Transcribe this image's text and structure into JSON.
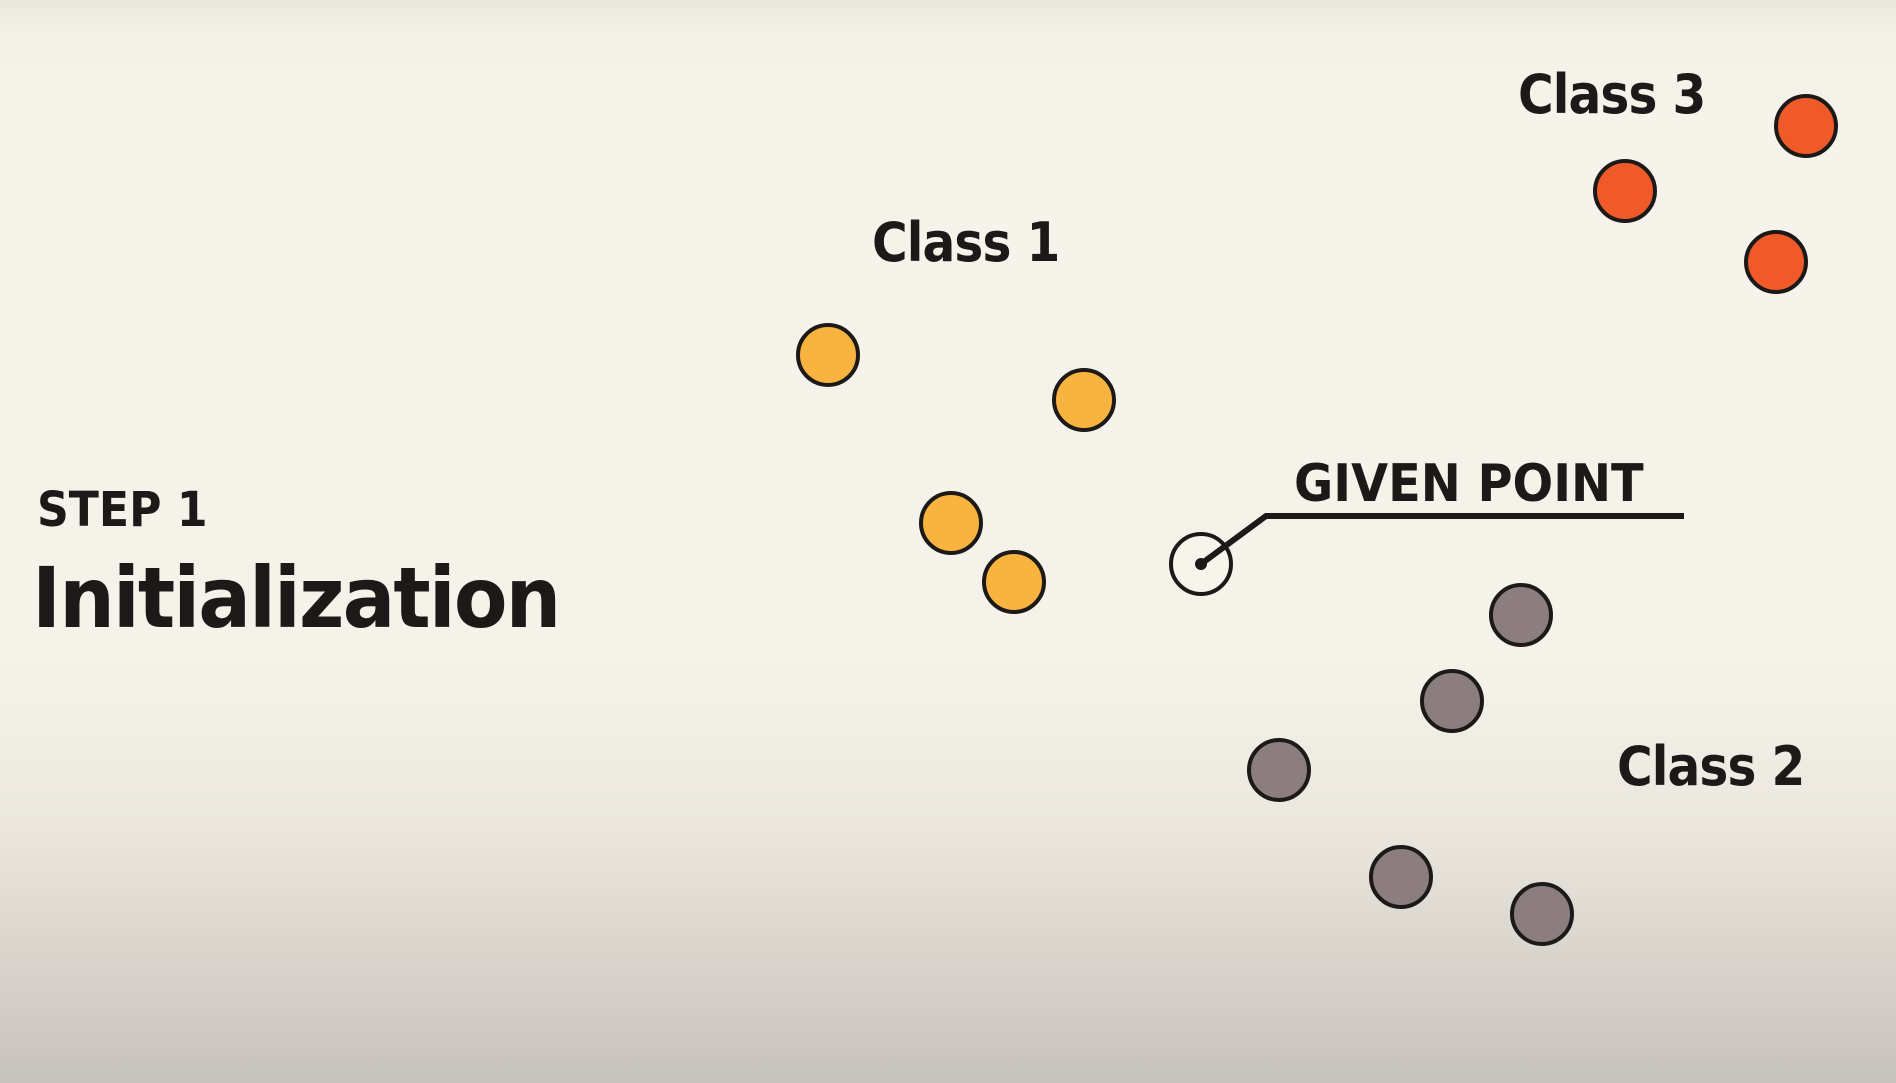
{
  "step": {
    "label": "STEP 1",
    "title": "Initialization"
  },
  "given_point": {
    "label": "GIVEN POINT"
  },
  "classes": [
    {
      "label": "Class 1",
      "color": "#f9b43f",
      "point_count": 4
    },
    {
      "label": "Class 2",
      "color": "#8c7d7f",
      "point_count": 5
    },
    {
      "label": "Class 3",
      "color": "#f05a28",
      "point_count": 3
    }
  ],
  "colors": {
    "text": "#1c1a18",
    "outline": "#1c1a18",
    "background": "#f5f2e9"
  }
}
